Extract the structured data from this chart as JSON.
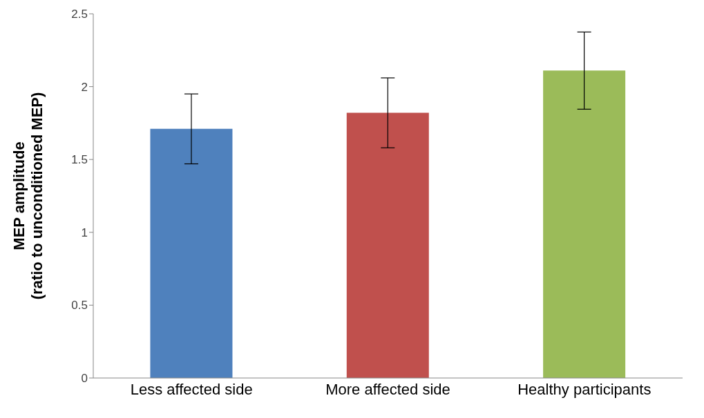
{
  "chart_data": {
    "type": "bar",
    "ylabel": "MEP amplitude\n(ratio to unconditioned MEP)",
    "categories": [
      "Less affected side",
      "More affected side",
      "Healthy participants"
    ],
    "values": [
      1.71,
      1.82,
      2.11
    ],
    "errors": [
      0.24,
      0.24,
      0.265
    ],
    "colors": [
      "#4f81bd",
      "#c0504d",
      "#9bbb59"
    ],
    "ylim": [
      0,
      2.5
    ],
    "yticks": [
      0,
      0.5,
      1,
      1.5,
      2,
      2.5
    ],
    "grid": false
  }
}
